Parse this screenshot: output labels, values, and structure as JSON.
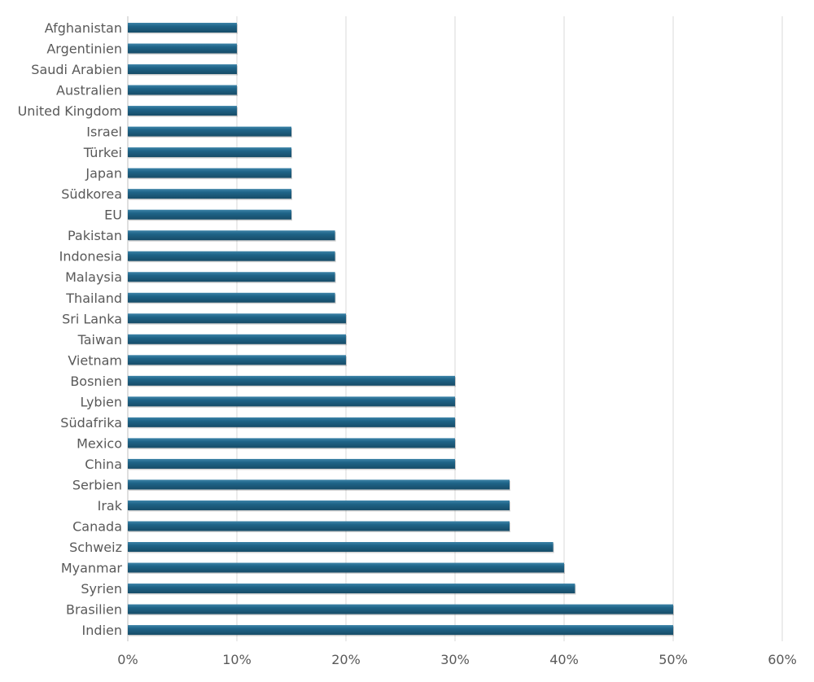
{
  "chart_data": {
    "type": "bar",
    "orientation": "horizontal",
    "title": "",
    "xlabel": "",
    "ylabel": "",
    "xlim": [
      0,
      60
    ],
    "x_ticks": [
      "0%",
      "10%",
      "20%",
      "30%",
      "40%",
      "50%",
      "60%"
    ],
    "grid": "vertical",
    "bar_color": "#1f5f80",
    "categories": [
      "Afghanistan",
      "Argentinien",
      "Saudi Arabien",
      "Australien",
      "United Kingdom",
      "Israel",
      "Türkei",
      "Japan",
      "Südkorea",
      "EU",
      "Pakistan",
      "Indonesia",
      "Malaysia",
      "Thailand",
      "Sri Lanka",
      "Taiwan",
      "Vietnam",
      "Bosnien",
      "Lybien",
      "Südafrika",
      "Mexico",
      "China",
      "Serbien",
      "Irak",
      "Canada",
      "Schweiz",
      "Myanmar",
      "Syrien",
      "Brasilien",
      "Indien"
    ],
    "values": [
      10,
      10,
      10,
      10,
      10,
      15,
      15,
      15,
      15,
      15,
      19,
      19,
      19,
      19,
      20,
      20,
      20,
      30,
      30,
      30,
      30,
      30,
      35,
      35,
      35,
      39,
      40,
      41,
      50,
      50
    ]
  }
}
